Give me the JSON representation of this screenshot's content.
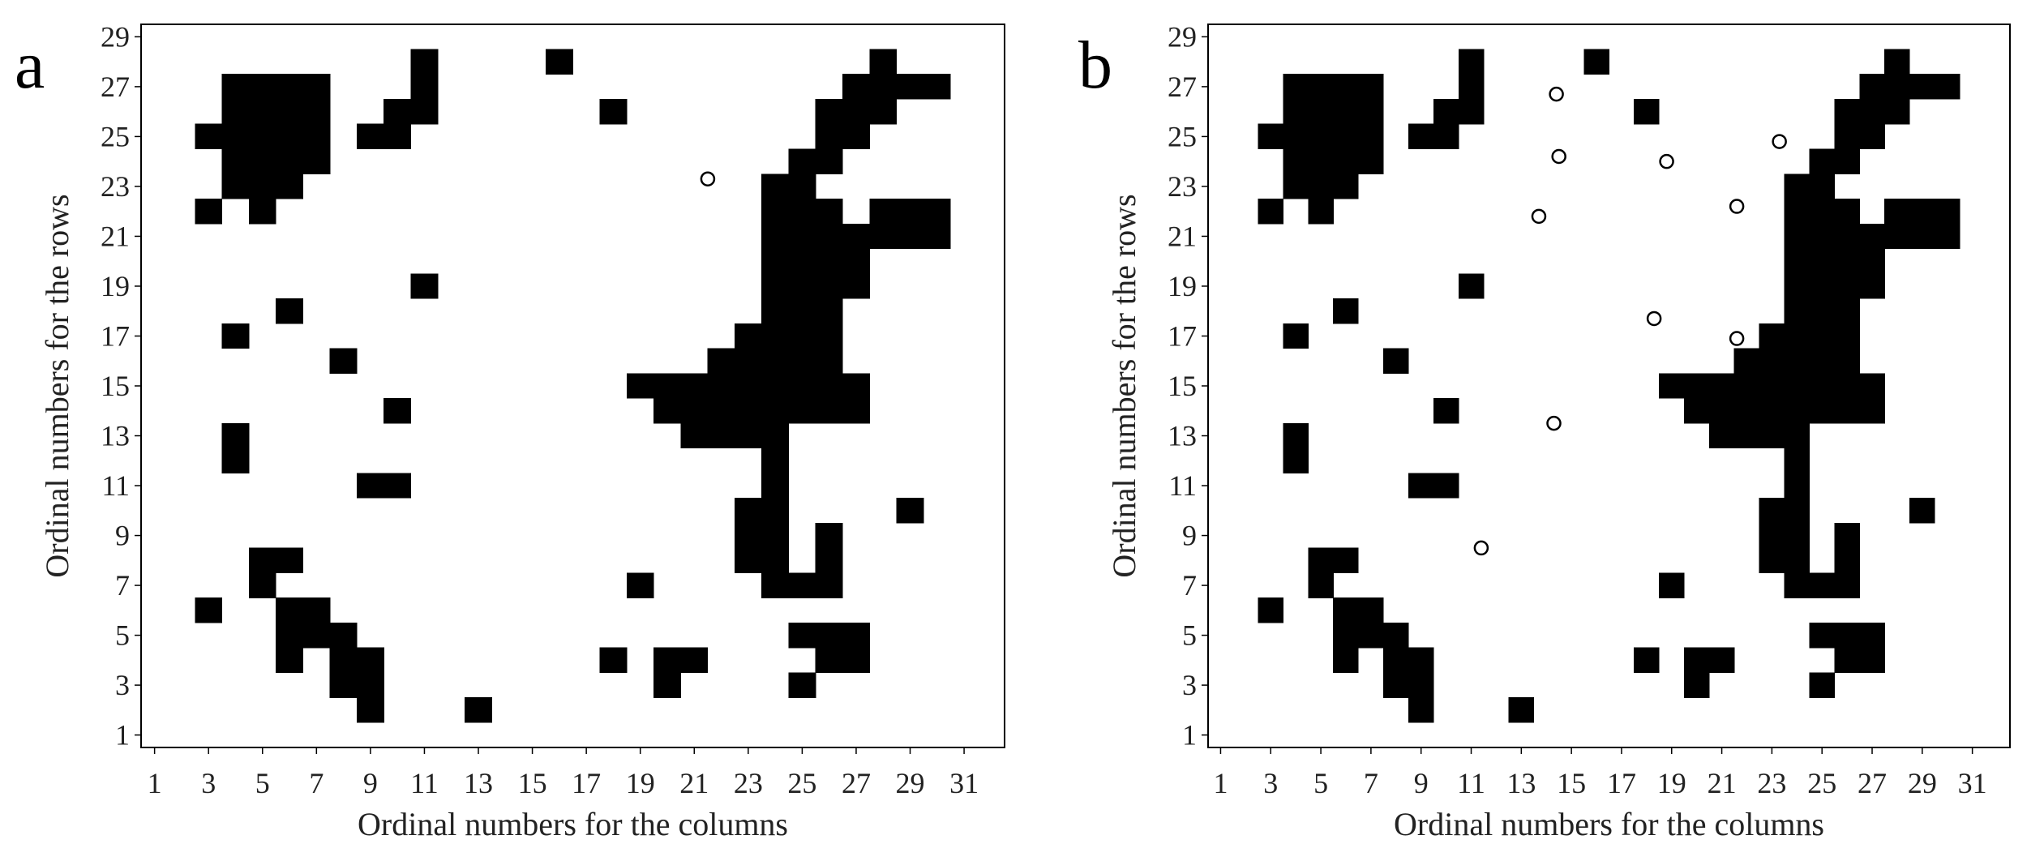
{
  "chart_data": [
    {
      "type": "heatmap",
      "panel_label": "a",
      "xlabel": "Ordinal numbers for the columns",
      "ylabel": "Ordinal numbers for the rows",
      "xticks": [
        1,
        3,
        5,
        7,
        9,
        11,
        13,
        15,
        17,
        19,
        21,
        23,
        25,
        27,
        29,
        31
      ],
      "yticks": [
        1,
        3,
        5,
        7,
        9,
        11,
        13,
        15,
        17,
        19,
        21,
        23,
        25,
        27,
        29
      ],
      "xlim": [
        0.5,
        32.5
      ],
      "ylim": [
        0.5,
        29.5
      ],
      "grid": false,
      "cell_value": 1,
      "filled_cells_by_row": {
        "2": [
          9,
          13
        ],
        "3": [
          8,
          9,
          20,
          25
        ],
        "4": [
          6,
          8,
          9,
          18,
          20,
          21,
          26,
          27
        ],
        "5": [
          6,
          7,
          8,
          25,
          26,
          27
        ],
        "6": [
          3,
          6,
          7
        ],
        "7": [
          5,
          19,
          24,
          25,
          26
        ],
        "8": [
          5,
          6,
          23,
          24,
          26
        ],
        "9": [
          23,
          24,
          26
        ],
        "10": [
          23,
          24,
          29
        ],
        "11": [
          9,
          10,
          24
        ],
        "12": [
          4,
          24
        ],
        "13": [
          4,
          21,
          22,
          23,
          24
        ],
        "14": [
          10,
          20,
          21,
          22,
          23,
          24,
          25,
          26,
          27
        ],
        "15": [
          19,
          20,
          21,
          22,
          23,
          24,
          25,
          26,
          27
        ],
        "16": [
          8,
          22,
          23,
          24,
          25,
          26
        ],
        "17": [
          4,
          23,
          24,
          25,
          26
        ],
        "18": [
          6,
          24,
          25,
          26
        ],
        "19": [
          11,
          24,
          25,
          26,
          27
        ],
        "20": [
          24,
          25,
          26,
          27
        ],
        "21": [
          24,
          25,
          26,
          27,
          28,
          29,
          30
        ],
        "22": [
          3,
          5,
          24,
          25,
          26,
          28,
          29,
          30
        ],
        "23": [
          4,
          5,
          6,
          24,
          25
        ],
        "24": [
          4,
          5,
          6,
          7,
          25,
          26
        ],
        "25": [
          3,
          4,
          5,
          6,
          7,
          9,
          10,
          26,
          27
        ],
        "26": [
          4,
          5,
          6,
          7,
          10,
          11,
          18,
          26,
          27,
          28
        ],
        "27": [
          4,
          5,
          6,
          7,
          11,
          27,
          28,
          29,
          30
        ],
        "28": [
          11,
          16,
          28
        ]
      },
      "points": [
        {
          "x": 21.5,
          "y": 23.3
        }
      ]
    },
    {
      "type": "heatmap",
      "panel_label": "b",
      "xlabel": "Ordinal numbers for the columns",
      "ylabel": "Ordinal numbers for the rows",
      "xticks": [
        1,
        3,
        5,
        7,
        9,
        11,
        13,
        15,
        17,
        19,
        21,
        23,
        25,
        27,
        29,
        31
      ],
      "yticks": [
        1,
        3,
        5,
        7,
        9,
        11,
        13,
        15,
        17,
        19,
        21,
        23,
        25,
        27,
        29
      ],
      "xlim": [
        0.5,
        32.5
      ],
      "ylim": [
        0.5,
        29.5
      ],
      "grid": false,
      "cell_value": 1,
      "filled_cells_by_row": {
        "2": [
          9,
          13
        ],
        "3": [
          8,
          9,
          20,
          25
        ],
        "4": [
          6,
          8,
          9,
          18,
          20,
          21,
          26,
          27
        ],
        "5": [
          6,
          7,
          8,
          25,
          26,
          27
        ],
        "6": [
          3,
          6,
          7
        ],
        "7": [
          5,
          19,
          24,
          25,
          26
        ],
        "8": [
          5,
          6,
          23,
          24,
          26
        ],
        "9": [
          23,
          24,
          26
        ],
        "10": [
          23,
          24,
          29
        ],
        "11": [
          9,
          10,
          24
        ],
        "12": [
          4,
          24
        ],
        "13": [
          4,
          21,
          22,
          23,
          24
        ],
        "14": [
          10,
          20,
          21,
          22,
          23,
          24,
          25,
          26,
          27
        ],
        "15": [
          19,
          20,
          21,
          22,
          23,
          24,
          25,
          26,
          27
        ],
        "16": [
          8,
          22,
          23,
          24,
          25,
          26
        ],
        "17": [
          4,
          23,
          24,
          25,
          26
        ],
        "18": [
          6,
          24,
          25,
          26
        ],
        "19": [
          11,
          24,
          25,
          26,
          27
        ],
        "20": [
          24,
          25,
          26,
          27
        ],
        "21": [
          24,
          25,
          26,
          27,
          28,
          29,
          30
        ],
        "22": [
          3,
          5,
          24,
          25,
          26,
          28,
          29,
          30
        ],
        "23": [
          4,
          5,
          6,
          24,
          25
        ],
        "24": [
          4,
          5,
          6,
          7,
          25,
          26
        ],
        "25": [
          3,
          4,
          5,
          6,
          7,
          9,
          10,
          26,
          27
        ],
        "26": [
          4,
          5,
          6,
          7,
          10,
          11,
          18,
          26,
          27,
          28
        ],
        "27": [
          4,
          5,
          6,
          7,
          11,
          27,
          28,
          29,
          30
        ],
        "28": [
          11,
          16,
          28
        ]
      },
      "points": [
        {
          "x": 14.4,
          "y": 26.7
        },
        {
          "x": 23.3,
          "y": 24.8
        },
        {
          "x": 14.5,
          "y": 24.2
        },
        {
          "x": 18.8,
          "y": 24.0
        },
        {
          "x": 13.7,
          "y": 21.8
        },
        {
          "x": 21.6,
          "y": 22.2
        },
        {
          "x": 18.3,
          "y": 17.7
        },
        {
          "x": 21.6,
          "y": 16.9
        },
        {
          "x": 14.3,
          "y": 13.5
        },
        {
          "x": 11.4,
          "y": 8.5
        }
      ]
    }
  ]
}
